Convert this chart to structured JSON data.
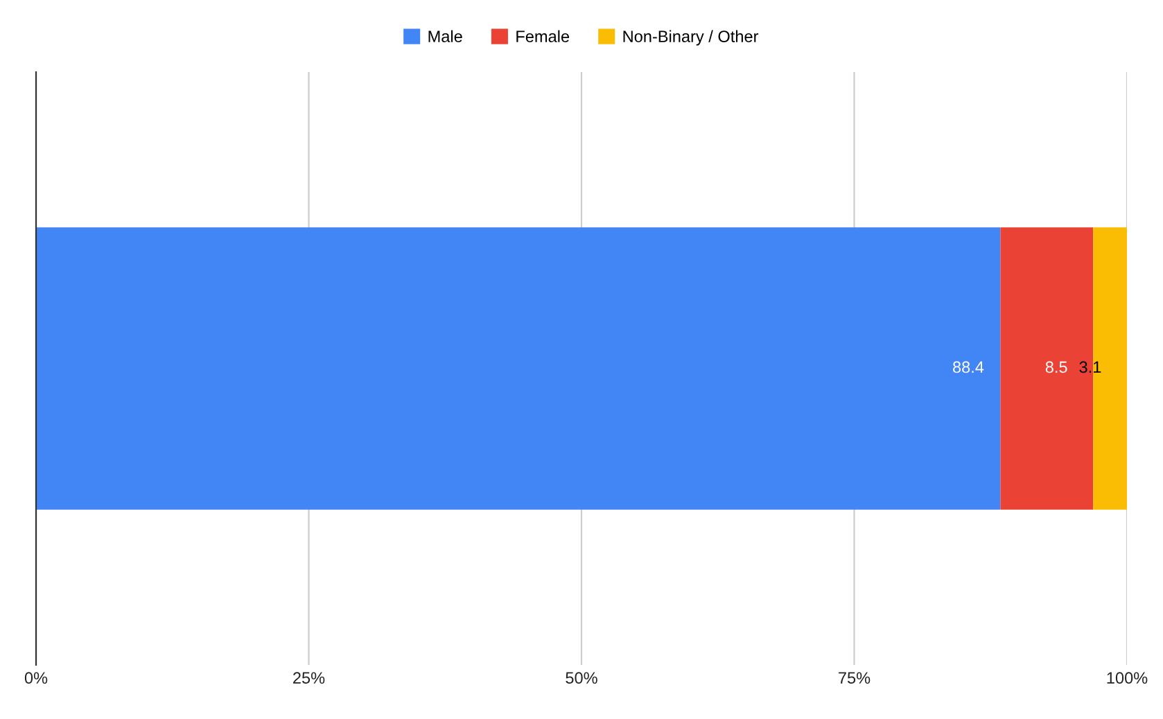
{
  "chart_data": {
    "type": "bar",
    "orientation": "horizontal",
    "stacked": true,
    "categories": [
      null
    ],
    "series": [
      {
        "name": "Male",
        "color": "#4285f4",
        "values": [
          88.4
        ]
      },
      {
        "name": "Female",
        "color": "#ea4335",
        "values": [
          8.5
        ]
      },
      {
        "name": "Non-Binary / Other",
        "color": "#fbbc04",
        "values": [
          3.1
        ]
      }
    ],
    "xlim": [
      0,
      100
    ],
    "xticks": [
      {
        "value": 0,
        "label": "0%"
      },
      {
        "value": 25,
        "label": "25%"
      },
      {
        "value": 50,
        "label": "50%"
      },
      {
        "value": 75,
        "label": "75%"
      },
      {
        "value": 100,
        "label": "100%"
      }
    ],
    "grid": "x",
    "legend": "top",
    "data_labels": true
  }
}
